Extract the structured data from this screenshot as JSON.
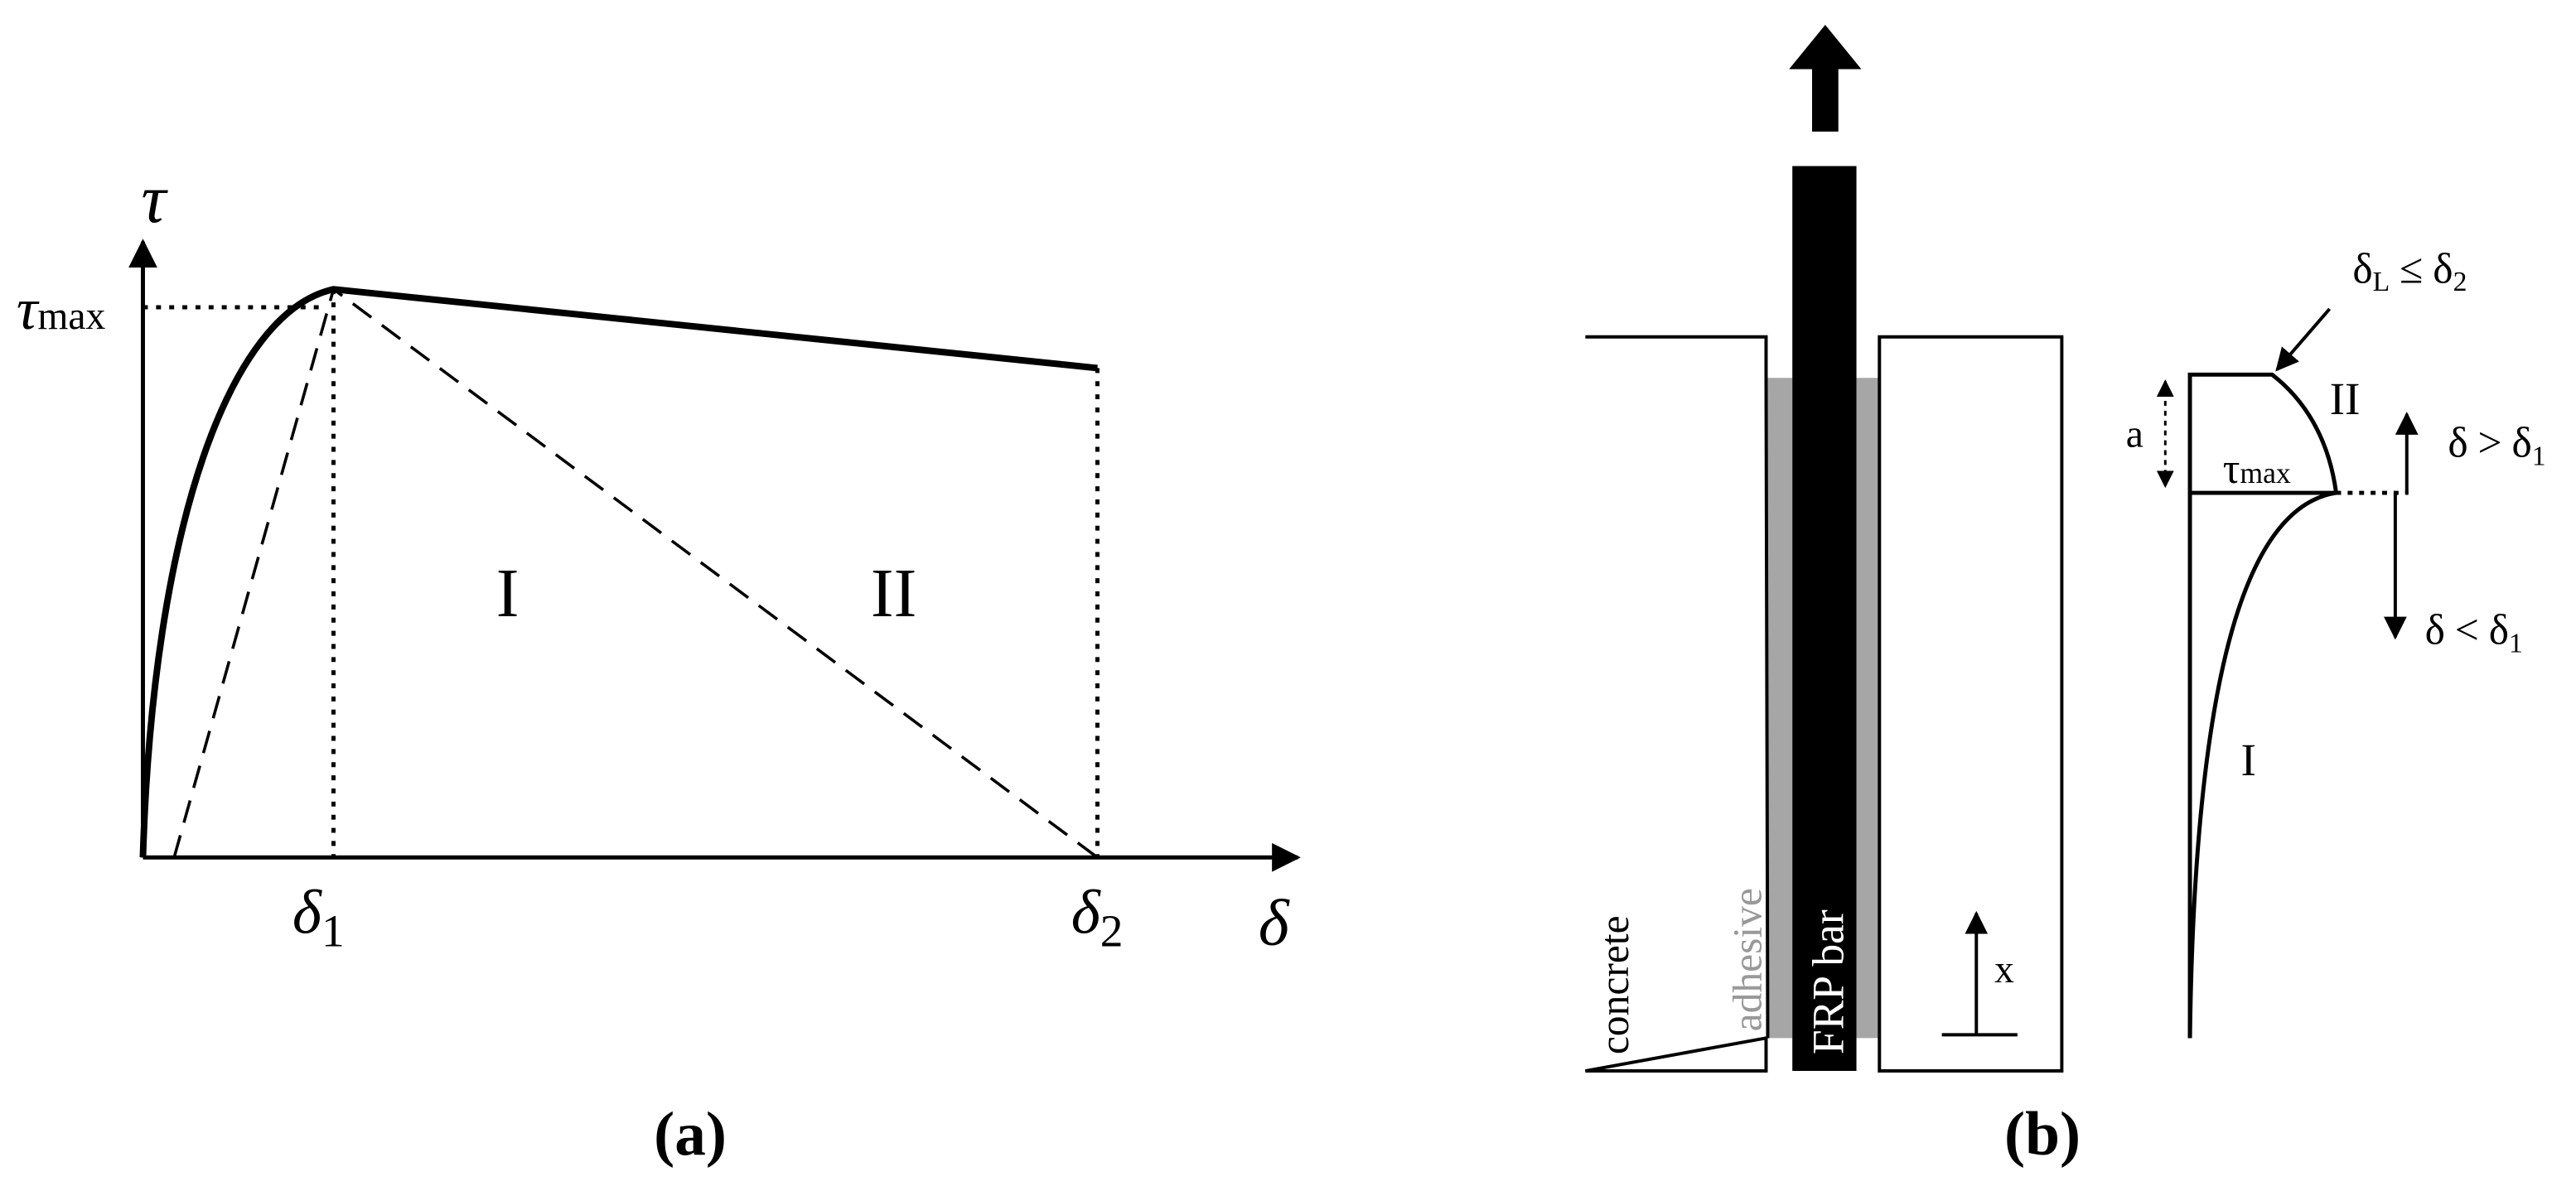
{
  "panel_a": {
    "y_axis_label": "τ",
    "x_axis_label": "δ",
    "tau_max": {
      "symbol": "τ",
      "subscript": "max"
    },
    "delta_1": {
      "symbol": "δ",
      "subscript": "1"
    },
    "delta_2": {
      "symbol": "δ",
      "subscript": "2"
    },
    "region_1": "I",
    "region_2": "II",
    "caption": "(a)"
  },
  "panel_b": {
    "concrete": "concrete",
    "adhesive": "adhesive",
    "bar": "FRP bar",
    "x_label": "x",
    "a_label": "a",
    "tau_max": {
      "symbol": "τ",
      "subscript": "max"
    },
    "annotation": {
      "symbol": "δ",
      "subscript": "L",
      "relation": "≤",
      "symbol2": "δ",
      "subscript2": "2"
    },
    "region_2": "II",
    "region_1": "I",
    "upper": {
      "symbol": "δ",
      "relation": ">",
      "symbol2": "δ",
      "subscript2": "1"
    },
    "lower": {
      "symbol": "δ",
      "relation": "<",
      "symbol2": "δ",
      "subscript2": "1"
    },
    "caption": "(b)"
  }
}
